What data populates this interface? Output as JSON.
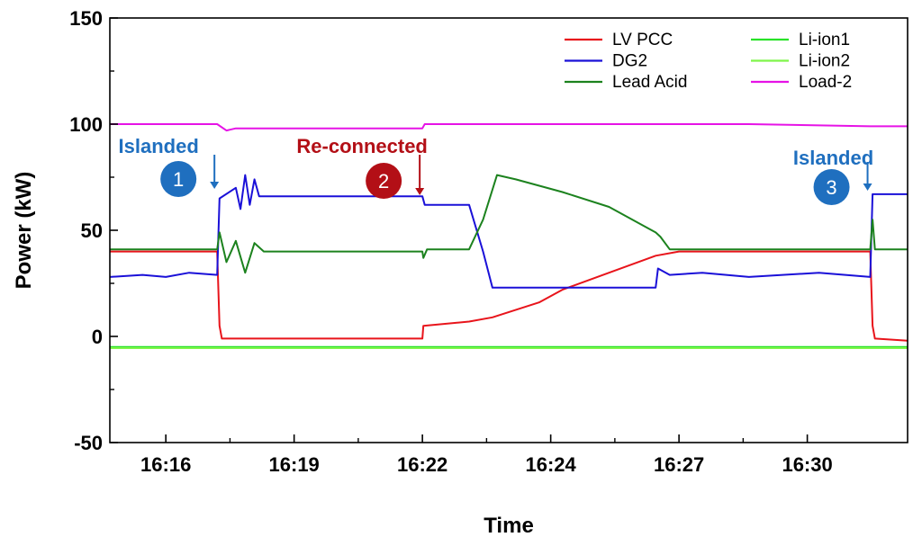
{
  "chart_data": {
    "type": "line",
    "title": "",
    "xlabel": "Time",
    "ylabel": "Power (kW)",
    "x_unit": "minutes",
    "xlim": [
      16.3,
      33.4
    ],
    "ylim": [
      -50,
      150
    ],
    "yticks": [
      -50,
      0,
      50,
      100,
      150
    ],
    "xticks": [
      {
        "value": 17.5,
        "label": "16:16"
      },
      {
        "value": 20.25,
        "label": "16:19"
      },
      {
        "value": 23.0,
        "label": "16:22"
      },
      {
        "value": 25.75,
        "label": "16:24"
      },
      {
        "value": 28.5,
        "label": "16:27"
      },
      {
        "value": 31.25,
        "label": "16:30"
      }
    ],
    "grid": false,
    "legend_position": "top-right",
    "series": [
      {
        "name": "LV PCC",
        "color": "#e8141b",
        "x": [
          16.3,
          18.6,
          18.65,
          18.7,
          23.0,
          23.02,
          24.0,
          24.5,
          25.5,
          26.0,
          27.0,
          28.0,
          28.5,
          30.0,
          32.0,
          32.6,
          32.65,
          32.7,
          33.4
        ],
        "y": [
          40,
          40,
          5,
          -1,
          -1,
          5,
          7,
          9,
          16,
          22,
          30,
          38,
          40,
          40,
          40,
          40,
          5,
          -1,
          -2
        ]
      },
      {
        "name": "DG2",
        "color": "#1a10d8",
        "x": [
          16.3,
          17.0,
          17.5,
          18.0,
          18.6,
          18.65,
          19.0,
          19.1,
          19.2,
          19.3,
          19.4,
          19.5,
          23.0,
          23.05,
          24.0,
          24.3,
          24.5,
          26.0,
          28.0,
          28.05,
          28.3,
          29.0,
          30.0,
          31.5,
          32.6,
          32.65,
          33.4
        ],
        "y": [
          28,
          29,
          28,
          30,
          29,
          65,
          70,
          60,
          76,
          62,
          74,
          66,
          66,
          62,
          62,
          40,
          23,
          23,
          23,
          32,
          29,
          30,
          28,
          30,
          28,
          67,
          67
        ]
      },
      {
        "name": "Lead Acid",
        "color": "#1c821e",
        "x": [
          16.3,
          18.6,
          18.65,
          18.8,
          19.0,
          19.2,
          19.4,
          19.6,
          23.0,
          23.02,
          23.1,
          24.0,
          24.3,
          24.6,
          25.0,
          26.0,
          27.0,
          28.0,
          28.1,
          28.3,
          30.0,
          32.6,
          32.65,
          32.7,
          33.4
        ],
        "y": [
          41,
          41,
          49,
          35,
          45,
          30,
          44,
          40,
          40,
          37,
          41,
          41,
          55,
          76,
          74,
          68,
          61,
          49,
          47,
          41,
          41,
          41,
          55,
          41,
          41
        ]
      },
      {
        "name": "Li-ion1",
        "color": "#28e228",
        "x": [
          16.3,
          33.4
        ],
        "y": [
          -5,
          -5
        ]
      },
      {
        "name": "Li-ion2",
        "color": "#7ff54a",
        "x": [
          16.3,
          33.4
        ],
        "y": [
          -5.5,
          -5.5
        ]
      },
      {
        "name": "Load-2",
        "color": "#e613e6",
        "x": [
          16.3,
          18.6,
          18.8,
          19.0,
          23.0,
          23.05,
          30.0,
          32.6,
          33.4
        ],
        "y": [
          100,
          100,
          97,
          98,
          98,
          100,
          100,
          99,
          99
        ]
      }
    ],
    "annotations": [
      {
        "label": "Islanded",
        "number": "1",
        "color": "#1f6fbf",
        "x": 18.6
      },
      {
        "label": "Re-connected",
        "number": "2",
        "color": "#b30f16",
        "x": 23.0
      },
      {
        "label": "Islanded",
        "number": "3",
        "color": "#1f6fbf",
        "x": 32.6
      }
    ]
  }
}
